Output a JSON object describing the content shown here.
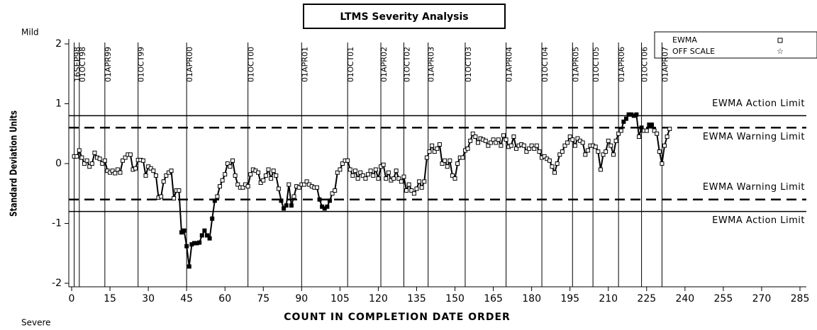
{
  "chart_data": {
    "type": "line",
    "title": "LTMS Severity Analysis",
    "xlabel": "COUNT IN COMPLETION DATE ORDER",
    "ylabel": "Standard Deviation Units",
    "top_note": "Mild",
    "bottom_note": "Severe",
    "off_scale_label": "OFF SCALE",
    "xlim": [
      0,
      285
    ],
    "xticks": [
      0,
      15,
      30,
      45,
      60,
      75,
      90,
      105,
      120,
      135,
      150,
      165,
      180,
      195,
      210,
      225,
      240,
      255,
      270,
      285
    ],
    "ylim": [
      -2,
      2
    ],
    "yticks": [
      -2,
      -1,
      0,
      1,
      2
    ],
    "series": [
      {
        "name": "EWMA",
        "color": "#000000",
        "values": [
          0.12,
          0.12,
          0.22,
          0.1,
          0.0,
          0.05,
          -0.05,
          0.0,
          0.18,
          0.1,
          0.08,
          0.0,
          0.05,
          -0.12,
          -0.15,
          -0.12,
          -0.16,
          -0.1,
          -0.15,
          0.05,
          0.1,
          0.15,
          0.15,
          -0.1,
          -0.08,
          0.06,
          0.06,
          0.05,
          -0.2,
          -0.05,
          -0.08,
          -0.12,
          -0.2,
          -0.57,
          -0.55,
          -0.3,
          -0.2,
          -0.15,
          -0.12,
          -0.58,
          -0.45,
          -0.45,
          -1.15,
          -1.12,
          -1.38,
          -1.72,
          -1.35,
          -1.33,
          -1.33,
          -1.32,
          -1.2,
          -1.12,
          -1.2,
          -1.25,
          -0.92,
          -0.62,
          -0.55,
          -0.38,
          -0.28,
          -0.18,
          0.0,
          -0.05,
          0.05,
          -0.2,
          -0.35,
          -0.4,
          -0.4,
          -0.35,
          -0.38,
          -0.18,
          -0.1,
          -0.12,
          -0.15,
          -0.32,
          -0.28,
          -0.2,
          -0.1,
          -0.25,
          -0.12,
          -0.2,
          -0.42,
          -0.62,
          -0.75,
          -0.7,
          -0.35,
          -0.7,
          -0.55,
          -0.38,
          -0.4,
          -0.35,
          -0.35,
          -0.3,
          -0.35,
          -0.38,
          -0.4,
          -0.4,
          -0.6,
          -0.72,
          -0.75,
          -0.72,
          -0.62,
          -0.5,
          -0.45,
          -0.15,
          -0.1,
          0.0,
          0.05,
          0.05,
          -0.1,
          -0.2,
          -0.12,
          -0.25,
          -0.15,
          -0.2,
          -0.25,
          -0.18,
          -0.12,
          -0.2,
          -0.1,
          -0.25,
          -0.05,
          -0.02,
          -0.25,
          -0.15,
          -0.28,
          -0.25,
          -0.12,
          -0.25,
          -0.3,
          -0.22,
          -0.45,
          -0.35,
          -0.45,
          -0.5,
          -0.42,
          -0.3,
          -0.4,
          -0.3,
          0.1,
          0.2,
          0.3,
          0.2,
          0.25,
          0.32,
          0.0,
          0.05,
          -0.05,
          0.05,
          -0.2,
          -0.25,
          0.0,
          0.1,
          0.1,
          0.22,
          0.25,
          0.38,
          0.5,
          0.45,
          0.35,
          0.42,
          0.4,
          0.38,
          0.3,
          0.35,
          0.4,
          0.35,
          0.4,
          0.3,
          0.47,
          0.4,
          0.28,
          0.3,
          0.45,
          0.25,
          0.3,
          0.32,
          0.3,
          0.2,
          0.25,
          0.3,
          0.25,
          0.3,
          0.2,
          0.1,
          0.12,
          0.08,
          0.05,
          -0.05,
          -0.15,
          0.0,
          0.15,
          0.2,
          0.3,
          0.35,
          0.45,
          0.4,
          0.3,
          0.42,
          0.38,
          0.35,
          0.15,
          0.22,
          0.3,
          0.3,
          0.28,
          0.2,
          -0.1,
          0.15,
          0.2,
          0.38,
          0.3,
          0.15,
          0.38,
          0.5,
          0.55,
          0.7,
          0.75,
          0.82,
          0.82,
          0.8,
          0.82,
          0.45,
          0.6,
          0.55,
          0.55,
          0.65,
          0.65,
          0.55,
          0.5,
          0.2,
          0.0,
          0.3,
          0.45,
          0.58
        ]
      }
    ],
    "reference_lines": [
      {
        "label": "EWMA Action Limit",
        "value": 0.8,
        "style": "solid"
      },
      {
        "label": "EWMA Warning Limit",
        "value": 0.6,
        "style": "dashed"
      },
      {
        "label": "EWMA Warning Limit",
        "value": -0.6,
        "style": "dashed"
      },
      {
        "label": "EWMA Action Limit",
        "value": -0.8,
        "style": "solid"
      }
    ],
    "date_lines": [
      {
        "label": "16SEP98",
        "x": 1
      },
      {
        "label": "01OCT98",
        "x": 3
      },
      {
        "label": "01APR99",
        "x": 13
      },
      {
        "label": "01OCT99",
        "x": 26
      },
      {
        "label": "01APR00",
        "x": 45
      },
      {
        "label": "01OCT00",
        "x": 69
      },
      {
        "label": "01APR01",
        "x": 90
      },
      {
        "label": "01OCT01",
        "x": 108
      },
      {
        "label": "01APR02",
        "x": 121
      },
      {
        "label": "01OCT02",
        "x": 130
      },
      {
        "label": "01APR03",
        "x": 139.5
      },
      {
        "label": "01OCT03",
        "x": 154
      },
      {
        "label": "01APR04",
        "x": 170
      },
      {
        "label": "01OCT04",
        "x": 184
      },
      {
        "label": "01APR05",
        "x": 196
      },
      {
        "label": "01OCT05",
        "x": 204
      },
      {
        "label": "01APR06",
        "x": 214
      },
      {
        "label": "01OCT06",
        "x": 223
      },
      {
        "label": "01APR07",
        "x": 231
      }
    ]
  }
}
